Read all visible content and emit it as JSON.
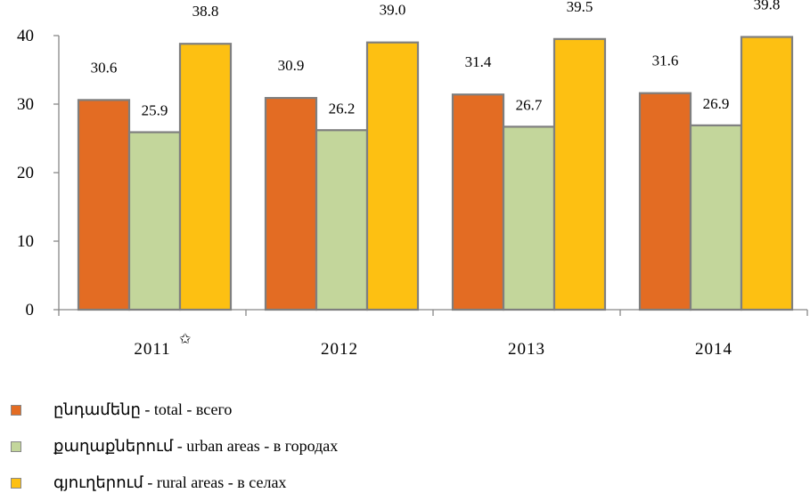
{
  "chart_data": {
    "type": "bar",
    "categories": [
      "2011",
      "2012",
      "2013",
      "2014"
    ],
    "category_marks": [
      "✩",
      "",
      "",
      ""
    ],
    "series": [
      {
        "name": "ընդամենը - total - всего",
        "color": "#E36C23",
        "values": [
          30.6,
          30.9,
          31.4,
          31.6
        ],
        "labels": [
          "30.6",
          "30.9",
          "31.4",
          "31.6"
        ]
      },
      {
        "name": "քաղաքներում - urban areas - в городах",
        "color": "#C3D69B",
        "values": [
          25.9,
          26.2,
          26.7,
          26.9
        ],
        "labels": [
          "25.9",
          "26.2",
          "26.7",
          "26.9"
        ]
      },
      {
        "name": "գյուղերում - rural areas - в селах",
        "color": "#FDC012",
        "values": [
          38.8,
          39.0,
          39.5,
          39.8
        ],
        "labels": [
          "38.8",
          "39.0",
          "39.5",
          "39.8"
        ]
      }
    ],
    "ylim": [
      0,
      40
    ],
    "yticks": [
      0,
      10,
      20,
      30,
      40
    ],
    "grid": false,
    "legend_position": "bottom-left",
    "bar_border_color": "#7F7F7F"
  }
}
